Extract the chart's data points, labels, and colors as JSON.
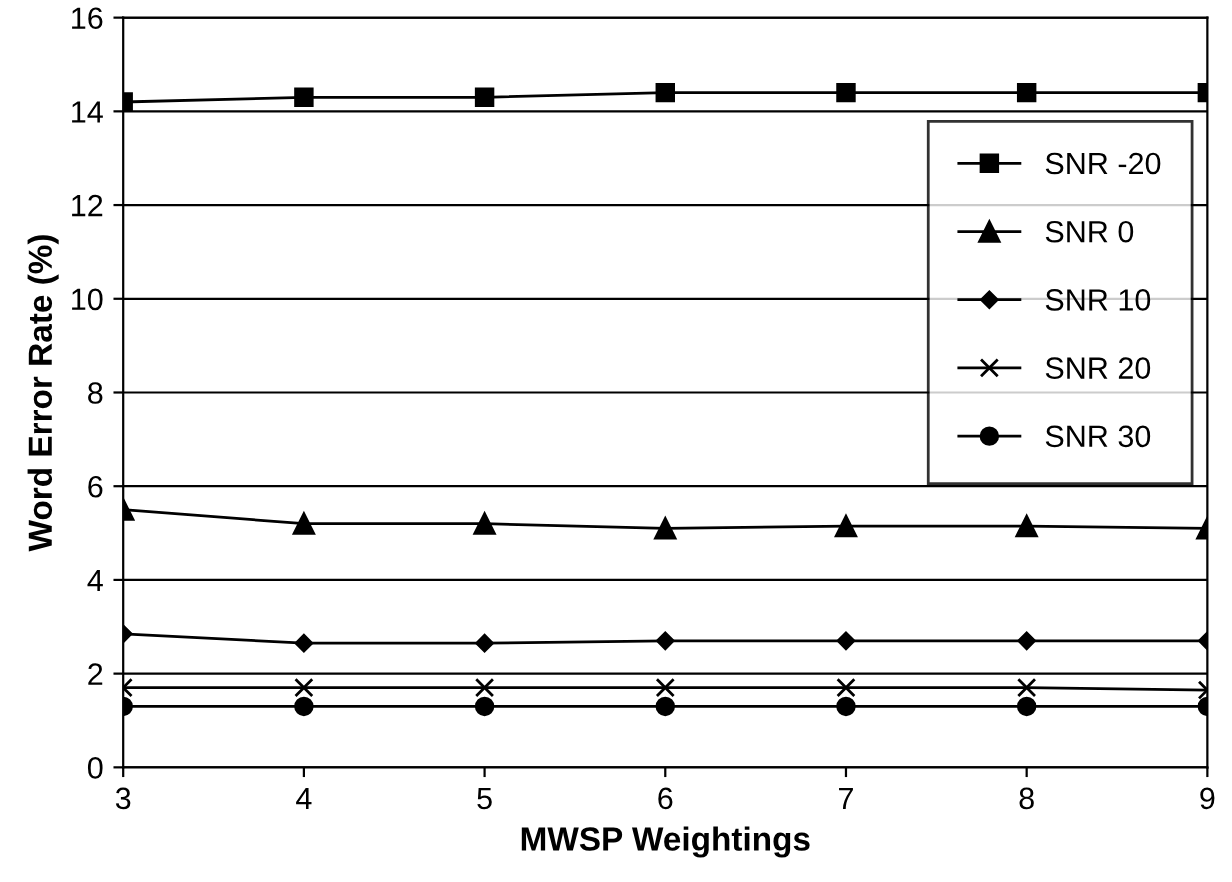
{
  "chart_data": {
    "type": "line",
    "xlabel": "MWSP Weightings",
    "ylabel": "Word Error Rate (%)",
    "x": [
      3,
      4,
      5,
      6,
      7,
      8,
      9
    ],
    "xlim": [
      3,
      9
    ],
    "xticks": [
      3,
      4,
      5,
      6,
      7,
      8,
      9
    ],
    "ylim": [
      0,
      16
    ],
    "yticks": [
      0,
      2,
      4,
      6,
      8,
      10,
      12,
      14,
      16
    ],
    "grid": "y",
    "legend": "right",
    "series": [
      {
        "name": "SNR -20",
        "color": "#000000",
        "marker": "square",
        "values": [
          14.2,
          14.3,
          14.3,
          14.4,
          14.4,
          14.4,
          14.4
        ]
      },
      {
        "name": "SNR 0",
        "color": "#000000",
        "marker": "triangle",
        "values": [
          5.5,
          5.2,
          5.2,
          5.1,
          5.15,
          5.15,
          5.1
        ]
      },
      {
        "name": "SNR 10",
        "color": "#000000",
        "marker": "diamond",
        "values": [
          2.85,
          2.65,
          2.65,
          2.7,
          2.7,
          2.7,
          2.7
        ]
      },
      {
        "name": "SNR 20",
        "color": "#000000",
        "marker": "cross",
        "values": [
          1.7,
          1.7,
          1.7,
          1.7,
          1.7,
          1.7,
          1.65
        ]
      },
      {
        "name": "SNR 30",
        "color": "#000000",
        "marker": "circle",
        "values": [
          1.3,
          1.3,
          1.3,
          1.3,
          1.3,
          1.3,
          1.3
        ]
      }
    ]
  }
}
